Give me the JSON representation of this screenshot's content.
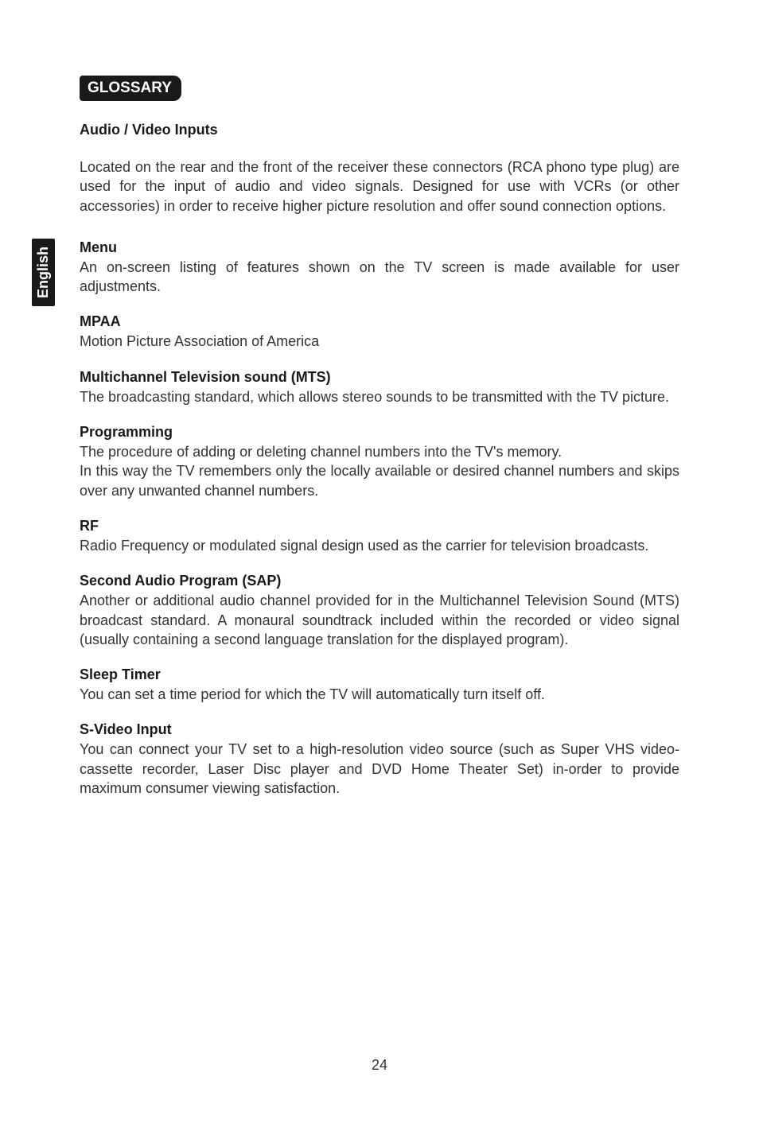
{
  "section_header": "GLOSSARY",
  "side_tab": "English",
  "page_number": "24",
  "entries": {
    "audio_video": {
      "title": "Audio / Video Inputs",
      "body": "Located on the rear and the front of the receiver these connectors (RCA phono type plug) are used for the input of audio and video signals. Designed for use with VCRs (or other accessories) in order to receive higher picture resolution and offer sound connection options."
    },
    "menu": {
      "title": "Menu",
      "body": "An on-screen listing of features shown on the TV screen is made available for user adjustments."
    },
    "mpaa": {
      "title": "MPAA",
      "body": "Motion Picture Association of America"
    },
    "mts": {
      "title": "Multichannel Television sound (MTS)",
      "body": "The broadcasting standard, which allows stereo sounds to be transmitted with the TV picture."
    },
    "programming": {
      "title": "Programming",
      "body": "The procedure of adding or deleting channel numbers into the TV's memory.\nIn this way the TV remembers only the locally available or desired channel numbers and skips over any unwanted channel numbers."
    },
    "rf": {
      "title": "RF",
      "body": "Radio Frequency or modulated signal design used as the carrier for television broadcasts."
    },
    "sap": {
      "title": "Second Audio Program (SAP)",
      "body": "Another or additional audio channel provided for in the Multichannel Television Sound (MTS) broadcast standard. A monaural soundtrack included within the recorded or video signal (usually containing a second language translation for the displayed program)."
    },
    "sleep": {
      "title": "Sleep Timer",
      "body": "You can set a time period for which the TV will automatically turn itself off."
    },
    "svideo": {
      "title": "S-Video Input",
      "body": "You can connect your TV set to a high-resolution video source (such as Super VHS video-cassette recorder, Laser Disc player and DVD Home Theater Set) in-order to provide maximum consumer viewing satisfaction."
    }
  }
}
